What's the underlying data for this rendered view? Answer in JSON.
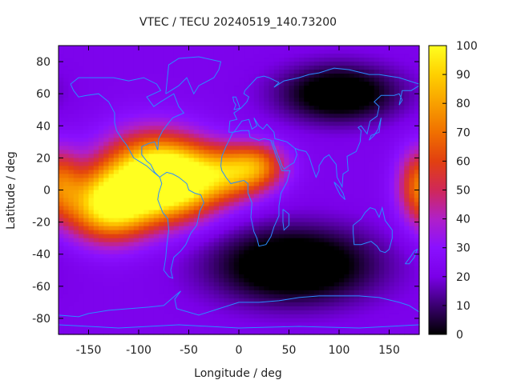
{
  "chart_data": {
    "type": "heatmap",
    "title": "VTEC / TECU 20240519_140.73200",
    "xlabel": "Longitude / deg",
    "ylabel": "Latitude / deg",
    "xlim": [
      -180,
      180
    ],
    "ylim": [
      -90,
      90
    ],
    "x_ticks": [
      -150,
      -100,
      -50,
      0,
      50,
      100,
      150
    ],
    "y_ticks": [
      -80,
      -60,
      -40,
      -20,
      0,
      20,
      40,
      60,
      80
    ],
    "colorbar": {
      "range": [
        0,
        100
      ],
      "ticks": [
        0,
        10,
        20,
        30,
        40,
        50,
        60,
        70,
        80,
        90,
        100
      ],
      "palette": [
        "#000000",
        "#3a0070",
        "#7a00e8",
        "#8a10ff",
        "#b020c8",
        "#d02858",
        "#e24010",
        "#f07000",
        "#f8a000",
        "#ffd000",
        "#ffff20"
      ]
    },
    "grid": false,
    "features": [
      {
        "lon": -130,
        "lat": -10,
        "value": 96,
        "sigma_lon": 30,
        "sigma_lat": 15
      },
      {
        "lon": -90,
        "lat": 10,
        "value": 86,
        "sigma_lon": 35,
        "sigma_lat": 18
      },
      {
        "lon": -60,
        "lat": 5,
        "value": 80,
        "sigma_lon": 30,
        "sigma_lat": 16
      },
      {
        "lon": -10,
        "lat": 10,
        "value": 66,
        "sigma_lon": 25,
        "sigma_lat": 12
      },
      {
        "lon": 20,
        "lat": 15,
        "value": 60,
        "sigma_lon": 20,
        "sigma_lat": 10
      },
      {
        "lon": 180,
        "lat": 5,
        "value": 60,
        "sigma_lon": 15,
        "sigma_lat": 15
      },
      {
        "lon": 55,
        "lat": -47,
        "value": -14,
        "sigma_lon": 55,
        "sigma_lat": 16
      },
      {
        "lon": 100,
        "lat": 60,
        "value": -10,
        "sigma_lon": 40,
        "sigma_lat": 12
      }
    ],
    "background_value": 22
  }
}
